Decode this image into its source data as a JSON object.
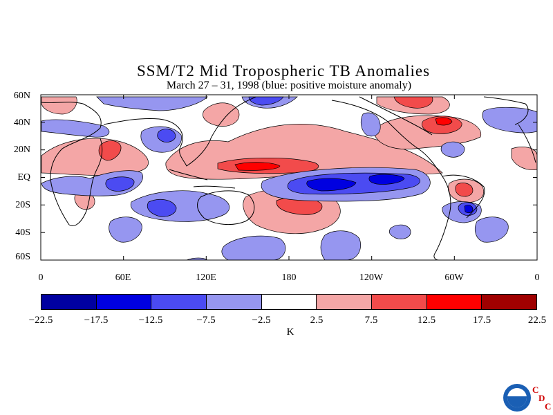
{
  "title": "SSM/T2 Mid Tropospheric TB Anomalies",
  "subtitle": "March 27 – 31, 1998 (blue: positive moisture anomaly)",
  "lat_labels": [
    "60N",
    "40N",
    "20N",
    "EQ",
    "20S",
    "40S",
    "60S"
  ],
  "lon_labels": [
    "0",
    "60E",
    "120E",
    "180",
    "120W",
    "60W",
    "0"
  ],
  "colorbar": {
    "labels": [
      "−22.5",
      "−17.5",
      "−12.5",
      "−7.5",
      "−2.5",
      "2.5",
      "7.5",
      "12.5",
      "17.5",
      "22.5"
    ],
    "colors": [
      "#0000a0",
      "#0000e0",
      "#4b4bf2",
      "#9696f0",
      "#ffffff",
      "#f4a6a6",
      "#f24b4b",
      "#ff0000",
      "#a00000"
    ],
    "unit": "K"
  },
  "logo": {
    "org_icon": "noaa-logo-icon",
    "letters": [
      "C",
      "D",
      "C"
    ]
  }
}
